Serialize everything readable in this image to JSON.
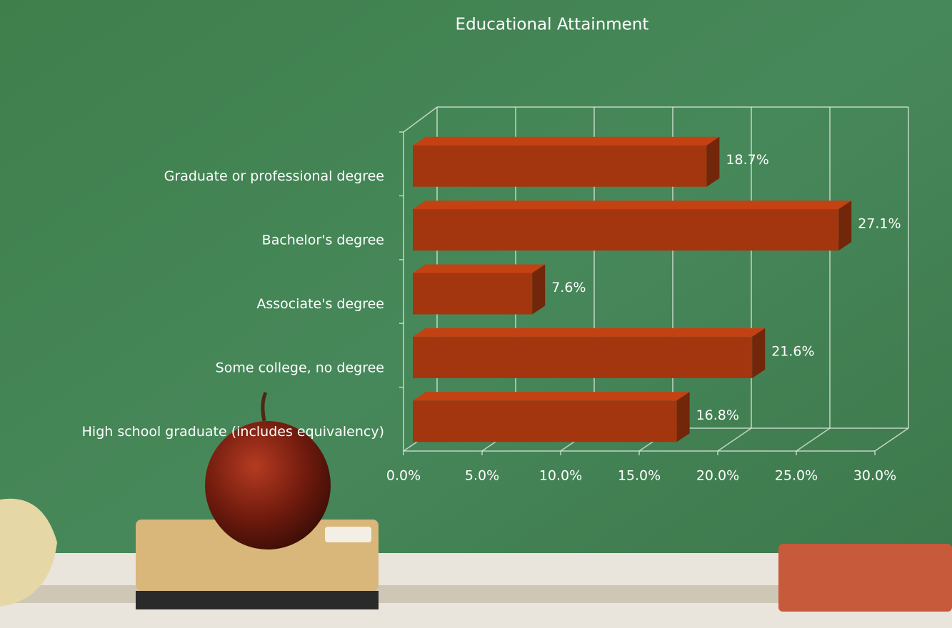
{
  "chart_data": {
    "type": "bar",
    "orientation": "horizontal",
    "title": "Educational Attainment",
    "categories": [
      "Graduate or professional degree",
      "Bachelor's degree",
      "Associate's degree",
      "Some college, no degree",
      "High school graduate (includes equivalency)"
    ],
    "values": [
      18.7,
      27.1,
      7.6,
      21.6,
      16.8
    ],
    "value_labels": [
      "18.7%",
      "27.1%",
      "7.6%",
      "21.6%",
      "16.8%"
    ],
    "color": "#a3360f",
    "xlim": [
      0,
      30
    ],
    "xticks": [
      {
        "value": 0,
        "label": "0.0%"
      },
      {
        "value": 5,
        "label": "5.0%"
      },
      {
        "value": 10,
        "label": "10.0%"
      },
      {
        "value": 15,
        "label": "15.0%"
      },
      {
        "value": 20,
        "label": "20.0%"
      },
      {
        "value": 25,
        "label": "25.0%"
      },
      {
        "value": 30,
        "label": "30.0%"
      }
    ],
    "grid": true
  }
}
